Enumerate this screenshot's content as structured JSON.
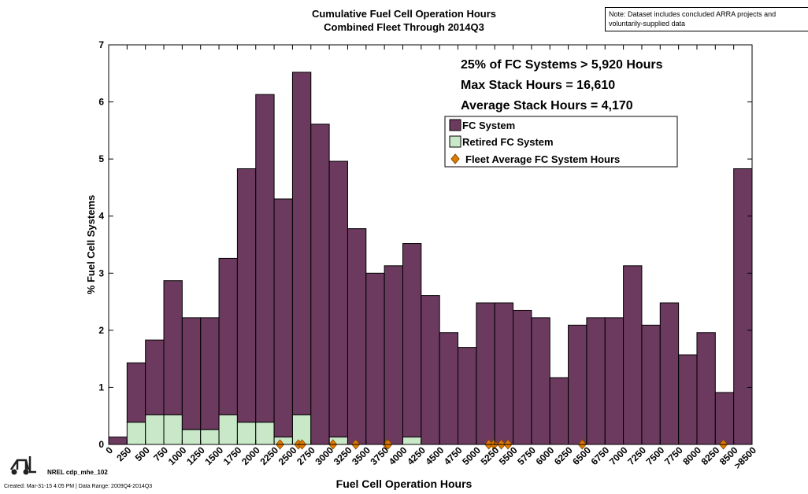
{
  "chart_data": {
    "type": "bar",
    "title": [
      "Cumulative Fuel Cell Operation Hours",
      "Combined Fleet Through 2014Q3"
    ],
    "note": [
      "Note: Dataset includes concluded ARRA projects and",
      "voluntarily-supplied data"
    ],
    "annotations": [
      "25% of FC Systems > 5,920 Hours",
      "Max Stack Hours = 16,610",
      "Average Stack Hours = 4,170"
    ],
    "xlabel": "Fuel Cell Operation Hours",
    "ylabel": "% Fuel Cell Systems",
    "footer": [
      "NREL cdp_mhe_102",
      "Created: Mar-31-15  4:05 PM | Data Range: 2009Q4-2014Q3"
    ],
    "xlim": [
      0,
      8750
    ],
    "xticks": [
      0,
      250,
      500,
      750,
      1000,
      1250,
      1500,
      1750,
      2000,
      2250,
      2500,
      2750,
      3000,
      3250,
      3500,
      3750,
      4000,
      4250,
      4500,
      4750,
      5000,
      5250,
      5500,
      5750,
      6000,
      6250,
      6500,
      6750,
      7000,
      7250,
      7500,
      7750,
      8000,
      8250,
      8500,
      {
        "value": 8750,
        "label": ">8500"
      }
    ],
    "ylim": [
      0,
      7
    ],
    "yticks": [
      0,
      1,
      2,
      3,
      4,
      5,
      6,
      7
    ],
    "series": [
      {
        "name": "Retired FC System",
        "color": "#c8e8c8",
        "values": [
          0,
          0.39,
          0.52,
          0.52,
          0.26,
          0.26,
          0.52,
          0.39,
          0.39,
          0.13,
          0.52,
          0,
          0.13,
          0,
          0,
          0,
          0.13,
          0,
          0,
          0,
          0,
          0,
          0,
          0,
          0,
          0,
          0,
          0,
          0,
          0,
          0,
          0,
          0,
          0,
          0
        ]
      },
      {
        "name": "FC System",
        "color": "#6b3a5e",
        "values": [
          0.13,
          1.04,
          1.31,
          2.35,
          1.96,
          1.96,
          2.74,
          4.44,
          5.74,
          4.17,
          6.0,
          5.61,
          4.83,
          3.78,
          3.0,
          3.13,
          3.39,
          2.61,
          1.96,
          1.7,
          2.48,
          2.48,
          2.35,
          2.22,
          1.17,
          2.09,
          2.22,
          2.22,
          3.13,
          2.09,
          2.48,
          1.57,
          1.96,
          0.91,
          4.83
        ]
      }
    ],
    "markers": {
      "name": "Fleet Average FC System Hours",
      "color": "#e07b00",
      "x": [
        2330,
        2580,
        2630,
        3050,
        3360,
        3780,
        3800,
        5170,
        5240,
        5340,
        5430,
        6440,
        8360
      ]
    }
  }
}
